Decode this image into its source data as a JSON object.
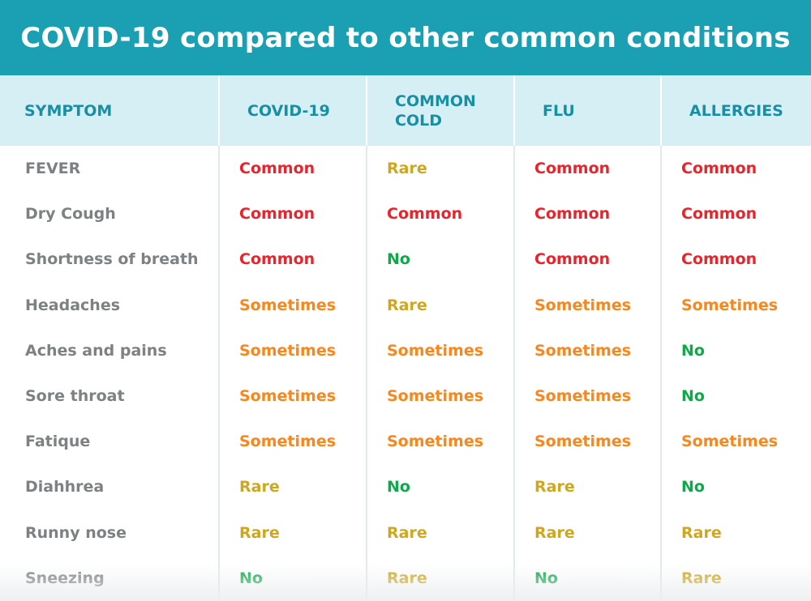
{
  "title": "COVID-19 compared to other common conditions",
  "headers": [
    "SYMPTOM",
    "COVID-19",
    "COMMON COLD",
    "FLU",
    "ALLERGIES"
  ],
  "colors": {
    "title_bg": "#1b9fb3",
    "header_bg": "#d6eff4",
    "header_text": "#178fa4",
    "symptom_text": "#7d8183",
    "Common": "#e8242c",
    "Sometimes": "#f7871f",
    "Rare": "#cfa71d",
    "No": "#0fa84b"
  },
  "rows": [
    {
      "symptom": "FEVER",
      "values": [
        "Common",
        "Rare",
        "Common",
        "Common"
      ]
    },
    {
      "symptom": "Dry Cough",
      "values": [
        "Common",
        "Common",
        "Common",
        "Common"
      ]
    },
    {
      "symptom": "Shortness of breath",
      "values": [
        "Common",
        "No",
        "Common",
        "Common"
      ]
    },
    {
      "symptom": "Headaches",
      "values": [
        "Sometimes",
        "Rare",
        "Sometimes",
        "Sometimes"
      ]
    },
    {
      "symptom": "Aches and pains",
      "values": [
        "Sometimes",
        "Sometimes",
        "Sometimes",
        "No"
      ]
    },
    {
      "symptom": "Sore throat",
      "values": [
        "Sometimes",
        "Sometimes",
        "Sometimes",
        "No"
      ]
    },
    {
      "symptom": "Fatique",
      "values": [
        "Sometimes",
        "Sometimes",
        "Sometimes",
        "Sometimes"
      ]
    },
    {
      "symptom": "Diahhrea",
      "values": [
        "Rare",
        "No",
        "Rare",
        "No"
      ]
    },
    {
      "symptom": "Runny nose",
      "values": [
        "Rare",
        "Rare",
        "Rare",
        "Rare"
      ]
    },
    {
      "symptom": "Sneezing",
      "values": [
        "No",
        "Rare",
        "No",
        "Rare"
      ]
    }
  ]
}
